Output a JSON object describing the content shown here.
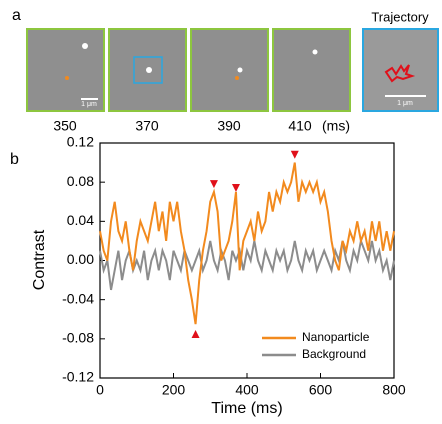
{
  "panel_a": {
    "label": "a",
    "times": [
      350,
      370,
      390,
      410
    ],
    "unit": "(ms)",
    "trajectory_title": "Trajectory",
    "scale_labels": [
      "1 μm",
      "1 μm"
    ]
  },
  "chart_data": {
    "type": "line",
    "panel_label": "b",
    "x_label": "Time (ms)",
    "y_label": "Contrast",
    "xlim": [
      0,
      800
    ],
    "xticks": [
      0,
      200,
      400,
      600,
      800
    ],
    "ylim": [
      -0.12,
      0.12
    ],
    "yticks": [
      -0.12,
      -0.08,
      -0.04,
      {
        "value": 0,
        "label": "0.00"
      },
      0.04,
      0.08,
      0.12
    ],
    "legend": "lower right",
    "x": [
      0,
      10,
      20,
      30,
      40,
      50,
      60,
      70,
      80,
      90,
      100,
      110,
      120,
      130,
      140,
      150,
      160,
      170,
      180,
      190,
      200,
      210,
      220,
      230,
      240,
      250,
      260,
      270,
      280,
      290,
      300,
      310,
      320,
      330,
      340,
      350,
      360,
      370,
      380,
      390,
      400,
      410,
      420,
      430,
      440,
      450,
      460,
      470,
      480,
      490,
      500,
      510,
      520,
      530,
      540,
      550,
      560,
      570,
      580,
      590,
      600,
      610,
      620,
      630,
      640,
      650,
      660,
      670,
      680,
      690,
      700,
      710,
      720,
      730,
      740,
      750,
      760,
      770,
      780,
      790,
      800
    ],
    "series": [
      {
        "name": "Nanoparticle",
        "color": "#f28a1e",
        "values": [
          0.03,
          0.01,
          0.0,
          0.04,
          0.06,
          0.03,
          0.02,
          0.04,
          0.01,
          -0.01,
          0.02,
          0.04,
          0.03,
          0.02,
          0.04,
          0.06,
          0.03,
          0.05,
          0.02,
          0.06,
          0.04,
          0.06,
          0.03,
          0.01,
          -0.02,
          -0.04,
          -0.065,
          -0.02,
          0.01,
          0.03,
          0.06,
          0.07,
          0.05,
          0.0,
          0.01,
          0.02,
          0.04,
          0.07,
          -0.01,
          0.02,
          0.03,
          0.04,
          0.02,
          0.05,
          0.03,
          0.04,
          0.07,
          0.05,
          0.07,
          0.06,
          0.08,
          0.07,
          0.08,
          0.1,
          0.06,
          0.08,
          0.07,
          0.08,
          0.07,
          0.08,
          0.06,
          0.07,
          0.05,
          0.02,
          0.0,
          -0.01,
          0.02,
          0.01,
          0.03,
          0.02,
          0.04,
          0.02,
          0.03,
          0.01,
          0.04,
          0.02,
          0.04,
          0.01,
          0.03,
          0.01,
          0.03
        ]
      },
      {
        "name": "Background",
        "color": "#8c8c8c",
        "values": [
          0.01,
          -0.01,
          0.0,
          -0.03,
          -0.01,
          0.01,
          -0.02,
          0.0,
          0.01,
          -0.01,
          0.0,
          -0.01,
          0.01,
          -0.02,
          0.0,
          0.01,
          -0.01,
          0.01,
          0.0,
          -0.02,
          0.01,
          0.0,
          -0.01,
          0.01,
          0.0,
          -0.01,
          0.0,
          0.01,
          -0.01,
          0.0,
          0.02,
          0.0,
          -0.01,
          0.01,
          0.0,
          -0.02,
          0.01,
          0.0,
          0.01,
          -0.01,
          0.01,
          0.0,
          0.02,
          0.0,
          -0.01,
          0.01,
          0.0,
          -0.01,
          0.01,
          0.0,
          0.01,
          -0.01,
          0.0,
          0.02,
          0.0,
          -0.01,
          0.01,
          0.0,
          0.01,
          -0.01,
          0.0,
          0.01,
          0.0,
          -0.01,
          0.01,
          0.0,
          0.02,
          0.0,
          -0.01,
          0.01,
          0.0,
          0.02,
          0.01,
          0.0,
          0.02,
          0.0,
          0.01,
          -0.01,
          0.0,
          -0.02,
          0.0
        ]
      }
    ],
    "markers": {
      "x": [
        260,
        310,
        370,
        530
      ],
      "y": [
        -0.075,
        0.078,
        0.074,
        0.108
      ],
      "color": "#e0101a"
    }
  }
}
